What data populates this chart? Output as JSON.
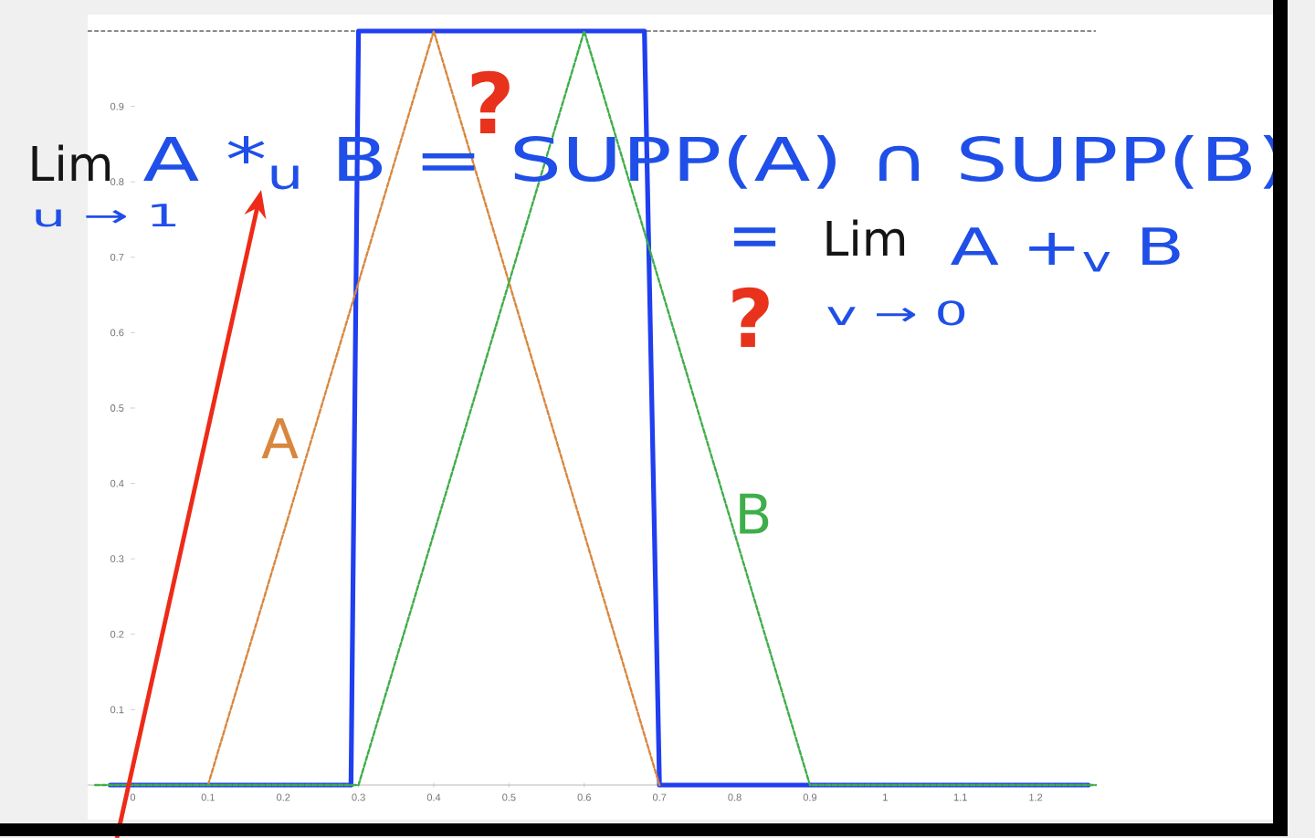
{
  "chart_data": {
    "type": "line",
    "xlim": [
      -0.06,
      1.28
    ],
    "ylim": [
      -0.046,
      1.015
    ],
    "xticks": [
      0,
      0.1,
      0.2,
      0.3,
      0.4,
      0.5,
      0.6,
      0.7,
      0.8,
      0.9,
      1,
      1.1,
      1.2
    ],
    "yticks": [
      0.1,
      0.2,
      0.3,
      0.4,
      0.5,
      0.6,
      0.7,
      0.8,
      0.9
    ],
    "series": [
      {
        "color": "#1f3ff0",
        "line_style": "solid",
        "x": [
          -0.03,
          0.29,
          0.3,
          0.68,
          0.7,
          1.27
        ],
        "values": [
          0,
          0,
          1,
          1,
          0,
          0
        ]
      },
      {
        "name": "A",
        "color": "#d9873f",
        "line_style": "dashed",
        "x": [
          0.1,
          0.4,
          0.7
        ],
        "values": [
          0,
          1,
          0
        ]
      },
      {
        "name": "B",
        "color": "#3fae4a",
        "line_style": "dashed",
        "x": [
          -0.05,
          0.3,
          0.6,
          0.9,
          1.28
        ],
        "values": [
          0,
          0,
          1,
          0,
          0
        ]
      }
    ],
    "ref_lines": [
      {
        "axis": "y",
        "value": 1,
        "color": "#666666",
        "line_style": "dashed"
      }
    ],
    "annotations": [
      "Lim",
      "u → 1",
      "A *$_{u}$ B = SUPP(A) ∩ SUPP(B)",
      "=",
      "Lim",
      "A +$_{v}$ B",
      "v → 0",
      "?",
      "?"
    ]
  }
}
